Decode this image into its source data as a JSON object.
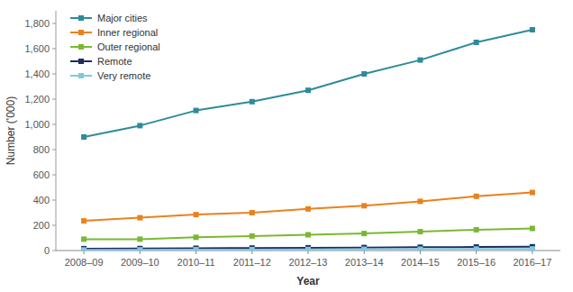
{
  "chart_data": {
    "type": "line",
    "x_label": "Year",
    "y_label": "Number ('000)",
    "categories": [
      "2008–09",
      "2009–10",
      "2010–11",
      "2011–12",
      "2012–13",
      "2013–14",
      "2014–15",
      "2015–16",
      "2016–17"
    ],
    "series": [
      {
        "name": "Major cities",
        "color": "#2e8b9a",
        "values": [
          900,
          990,
          1110,
          1180,
          1270,
          1400,
          1510,
          1650,
          1750
        ]
      },
      {
        "name": "Inner regional",
        "color": "#e8821e",
        "values": [
          235,
          260,
          285,
          300,
          330,
          355,
          390,
          430,
          460
        ]
      },
      {
        "name": "Outer regional",
        "color": "#7ab832",
        "values": [
          90,
          90,
          105,
          115,
          125,
          135,
          150,
          165,
          175
        ]
      },
      {
        "name": "Remote",
        "color": "#1c2d5e",
        "values": [
          15,
          16,
          18,
          20,
          22,
          24,
          26,
          28,
          30
        ]
      },
      {
        "name": "Very remote",
        "color": "#7ec8e3",
        "values": [
          5,
          6,
          7,
          8,
          9,
          10,
          11,
          12,
          13
        ]
      }
    ],
    "ylim": [
      0,
      1900
    ],
    "yticks": [
      0,
      200,
      400,
      600,
      800,
      {
        "value": 1000,
        "label": "1,000"
      },
      {
        "value": 1200,
        "label": "1,200"
      },
      {
        "value": 1400,
        "label": "1,400"
      },
      {
        "value": 1600,
        "label": "1,600"
      },
      {
        "value": 1800,
        "label": "1,800"
      }
    ],
    "marker": "square",
    "grid": false,
    "legend": "upper left"
  }
}
